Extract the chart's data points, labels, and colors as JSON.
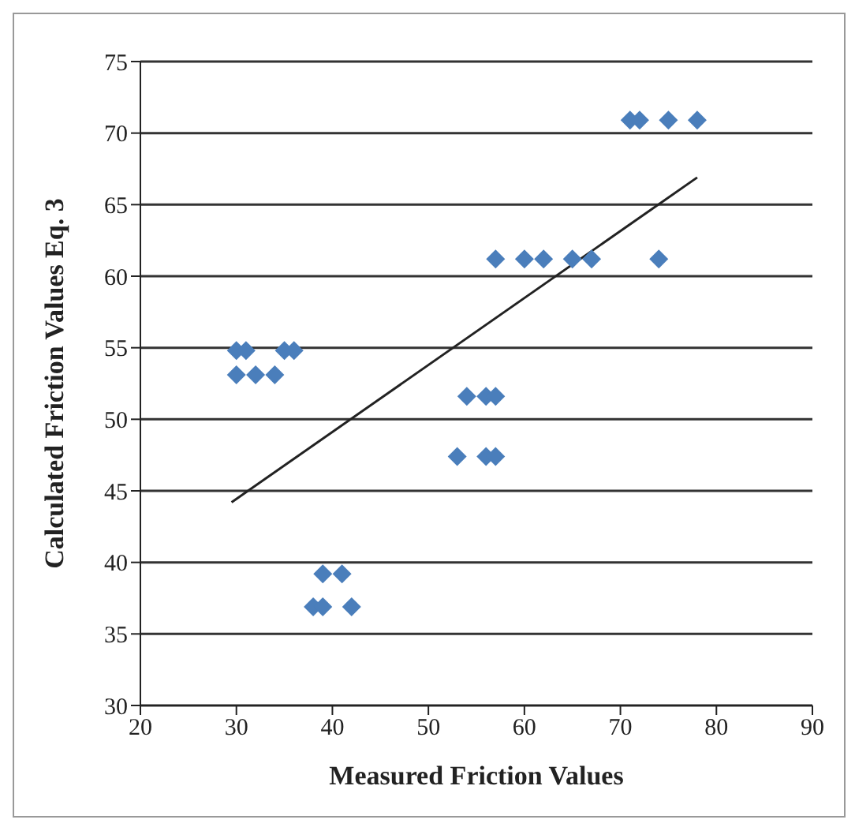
{
  "chart_data": {
    "type": "scatter",
    "xlabel": "Measured Friction Values",
    "ylabel": "Calculated Friction Values Eq. 3",
    "xlim": [
      20,
      90
    ],
    "xticks": [
      20,
      30,
      40,
      50,
      60,
      70,
      80,
      90
    ],
    "ylim": [
      30,
      75
    ],
    "yticks": [
      30,
      35,
      40,
      45,
      50,
      55,
      60,
      65,
      70,
      75
    ],
    "grid": "y",
    "marker": "diamond",
    "series": [
      {
        "color": "#4a7ebb",
        "x": [
          30,
          31,
          35,
          36,
          30,
          32,
          34,
          54,
          56,
          57,
          53,
          56,
          57,
          39,
          41,
          38,
          39,
          42,
          57,
          60,
          62,
          65,
          67,
          74,
          71,
          72,
          75,
          78
        ],
        "values": [
          54.8,
          54.8,
          54.8,
          54.8,
          53.1,
          53.1,
          53.1,
          51.6,
          51.6,
          51.6,
          47.4,
          47.4,
          47.4,
          39.2,
          39.2,
          36.9,
          36.9,
          36.9,
          61.2,
          61.2,
          61.2,
          61.2,
          61.2,
          61.2,
          70.9,
          70.9,
          70.9,
          70.9
        ]
      },
      {
        "type": "line",
        "color": "#222222",
        "x": [
          29.5,
          78
        ],
        "values": [
          44.2,
          66.9
        ],
        "marker": "none",
        "line_style": "solid"
      }
    ]
  }
}
